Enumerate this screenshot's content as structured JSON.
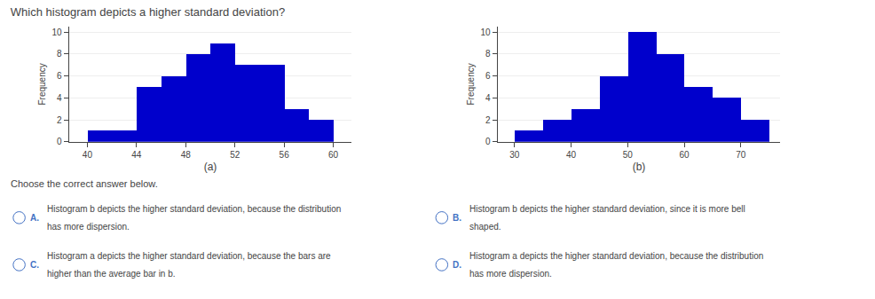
{
  "title": "Which histogram depicts a higher standard deviation?",
  "annotations": [
    "Choose the correct answer below.",
    "A.",
    "Histogram b depicts the higher standard deviation, because the distribution",
    "has more dispersion.",
    "B.",
    "Histogram b depicts the higher standard deviation, since it is more bell",
    "shaped.",
    "C.",
    "Histogram a depicts the higher standard deviation, because the bars are",
    "higher than the average bar in b.",
    "D.",
    "Histogram a depicts the higher standard deviation, because the distribution",
    "has more dispersion."
  ],
  "chart_data": [
    {
      "type": "histogram",
      "xlabel": "(a)",
      "ylabel": "Frequency",
      "bins": [
        40,
        42,
        44,
        46,
        48,
        50,
        52,
        54,
        56,
        58,
        60
      ],
      "values": [
        1,
        1,
        5,
        6,
        8,
        9,
        7,
        7,
        3,
        2
      ],
      "color": "#0000CC",
      "xlim": [
        38.5,
        61.5
      ],
      "xticks": [
        40,
        44,
        48,
        52,
        56,
        60
      ],
      "ylim": [
        0,
        10.5
      ],
      "yticks": [
        0,
        2,
        4,
        6,
        8,
        10
      ],
      "grid": true
    },
    {
      "type": "histogram",
      "xlabel": "(b)",
      "ylabel": "Frequency",
      "bins": [
        30,
        35,
        40,
        45,
        50,
        55,
        60,
        65,
        70,
        75
      ],
      "values": [
        1,
        2,
        3,
        6,
        10,
        8,
        5,
        4,
        2
      ],
      "color": "#0000CC",
      "xlim": [
        27,
        77
      ],
      "xticks": [
        30,
        40,
        50,
        60,
        70
      ],
      "ylim": [
        0,
        10.5
      ],
      "yticks": [
        0,
        2,
        4,
        6,
        8,
        10
      ],
      "grid": true
    }
  ]
}
